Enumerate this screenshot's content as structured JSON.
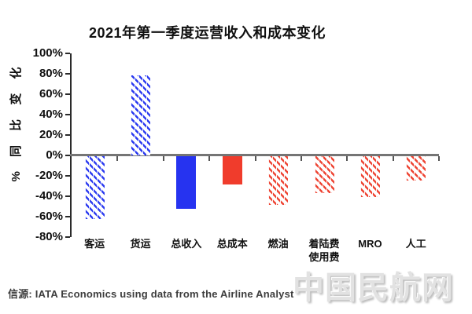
{
  "title": "2021年第一季度运营收入和成本变化",
  "y_axis_title": "% 同 比 变 化",
  "source_note": "信源: IATA Economics using data from the Airline Analyst",
  "watermark": "中国民航网",
  "chart_data": {
    "type": "bar",
    "title": "2021年第一季度运营收入和成本变化",
    "ylabel": "% 同比变化",
    "xlabel": "",
    "ylim": [
      -80,
      100
    ],
    "ytick_step": 20,
    "ytick_labels": [
      "100%",
      "80%",
      "60%",
      "40%",
      "20%",
      "0%",
      "-20%",
      "-40%",
      "-60%",
      "-80%"
    ],
    "grid": false,
    "legend": "none",
    "categories": [
      "客运",
      "货运",
      "总收入",
      "总成本",
      "燃油",
      "着陆费\n使用费",
      "MRO",
      "人工"
    ],
    "values": [
      -62,
      79,
      -52,
      -28,
      -48,
      -36,
      -40,
      -24
    ],
    "bar_styles": [
      "hatch-blue",
      "hatch-blue",
      "solid-blue",
      "solid-red",
      "hatch-red",
      "hatch-red",
      "hatch-red",
      "hatch-red"
    ],
    "colors": {
      "solid_blue": "#2633f0",
      "solid_red": "#f03c2c",
      "hatch_blue": "#2d3cf0",
      "hatch_red": "#ee4433",
      "axis": "#2a2a2a",
      "zero_line": "#757575"
    },
    "source": "信源: IATA Economics using data from the Airline Analyst"
  }
}
